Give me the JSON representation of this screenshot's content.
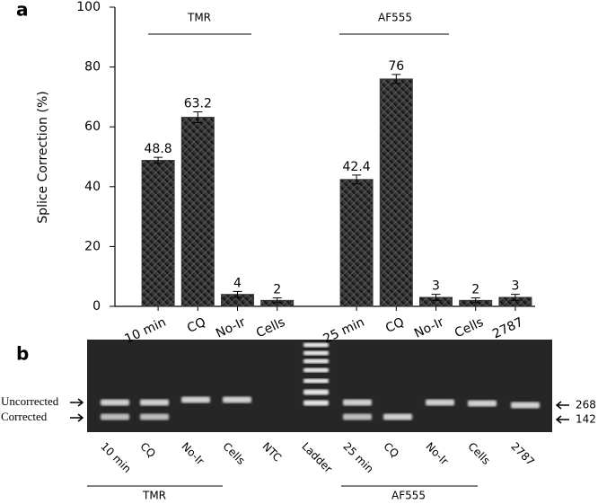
{
  "panel_labels": [
    "a",
    "b"
  ],
  "chart_data": {
    "type": "bar",
    "categories": [
      "10 min",
      "CQ",
      "No-Ir",
      "Cells",
      null,
      "25 min",
      "CQ",
      "No-Ir",
      "Cells",
      "2787"
    ],
    "values": [
      48.8,
      63.2,
      4,
      2,
      null,
      42.4,
      76,
      3,
      2,
      3
    ],
    "errors": [
      1,
      1.8,
      1,
      0.8,
      null,
      1.5,
      1.5,
      1,
      0.8,
      1
    ],
    "ylabel": "Splice Correction (%)",
    "ylim": [
      0,
      100
    ],
    "yticks": [
      0,
      20,
      40,
      60,
      80,
      100
    ],
    "color": "#3a3a3a",
    "annotations": [
      "TMR",
      "AF555"
    ]
  },
  "gel": {
    "lanes": [
      "10 min",
      "CQ",
      "No-Ir",
      "Cells",
      "NTC",
      "Ladder",
      "25 min",
      "CQ",
      "No-Ir",
      "Cells",
      "2787"
    ],
    "groups": [
      "TMR",
      "AF555"
    ],
    "left_labels": [
      "Uncorrected",
      "Corrected"
    ],
    "right_labels": [
      "268",
      "142"
    ]
  }
}
